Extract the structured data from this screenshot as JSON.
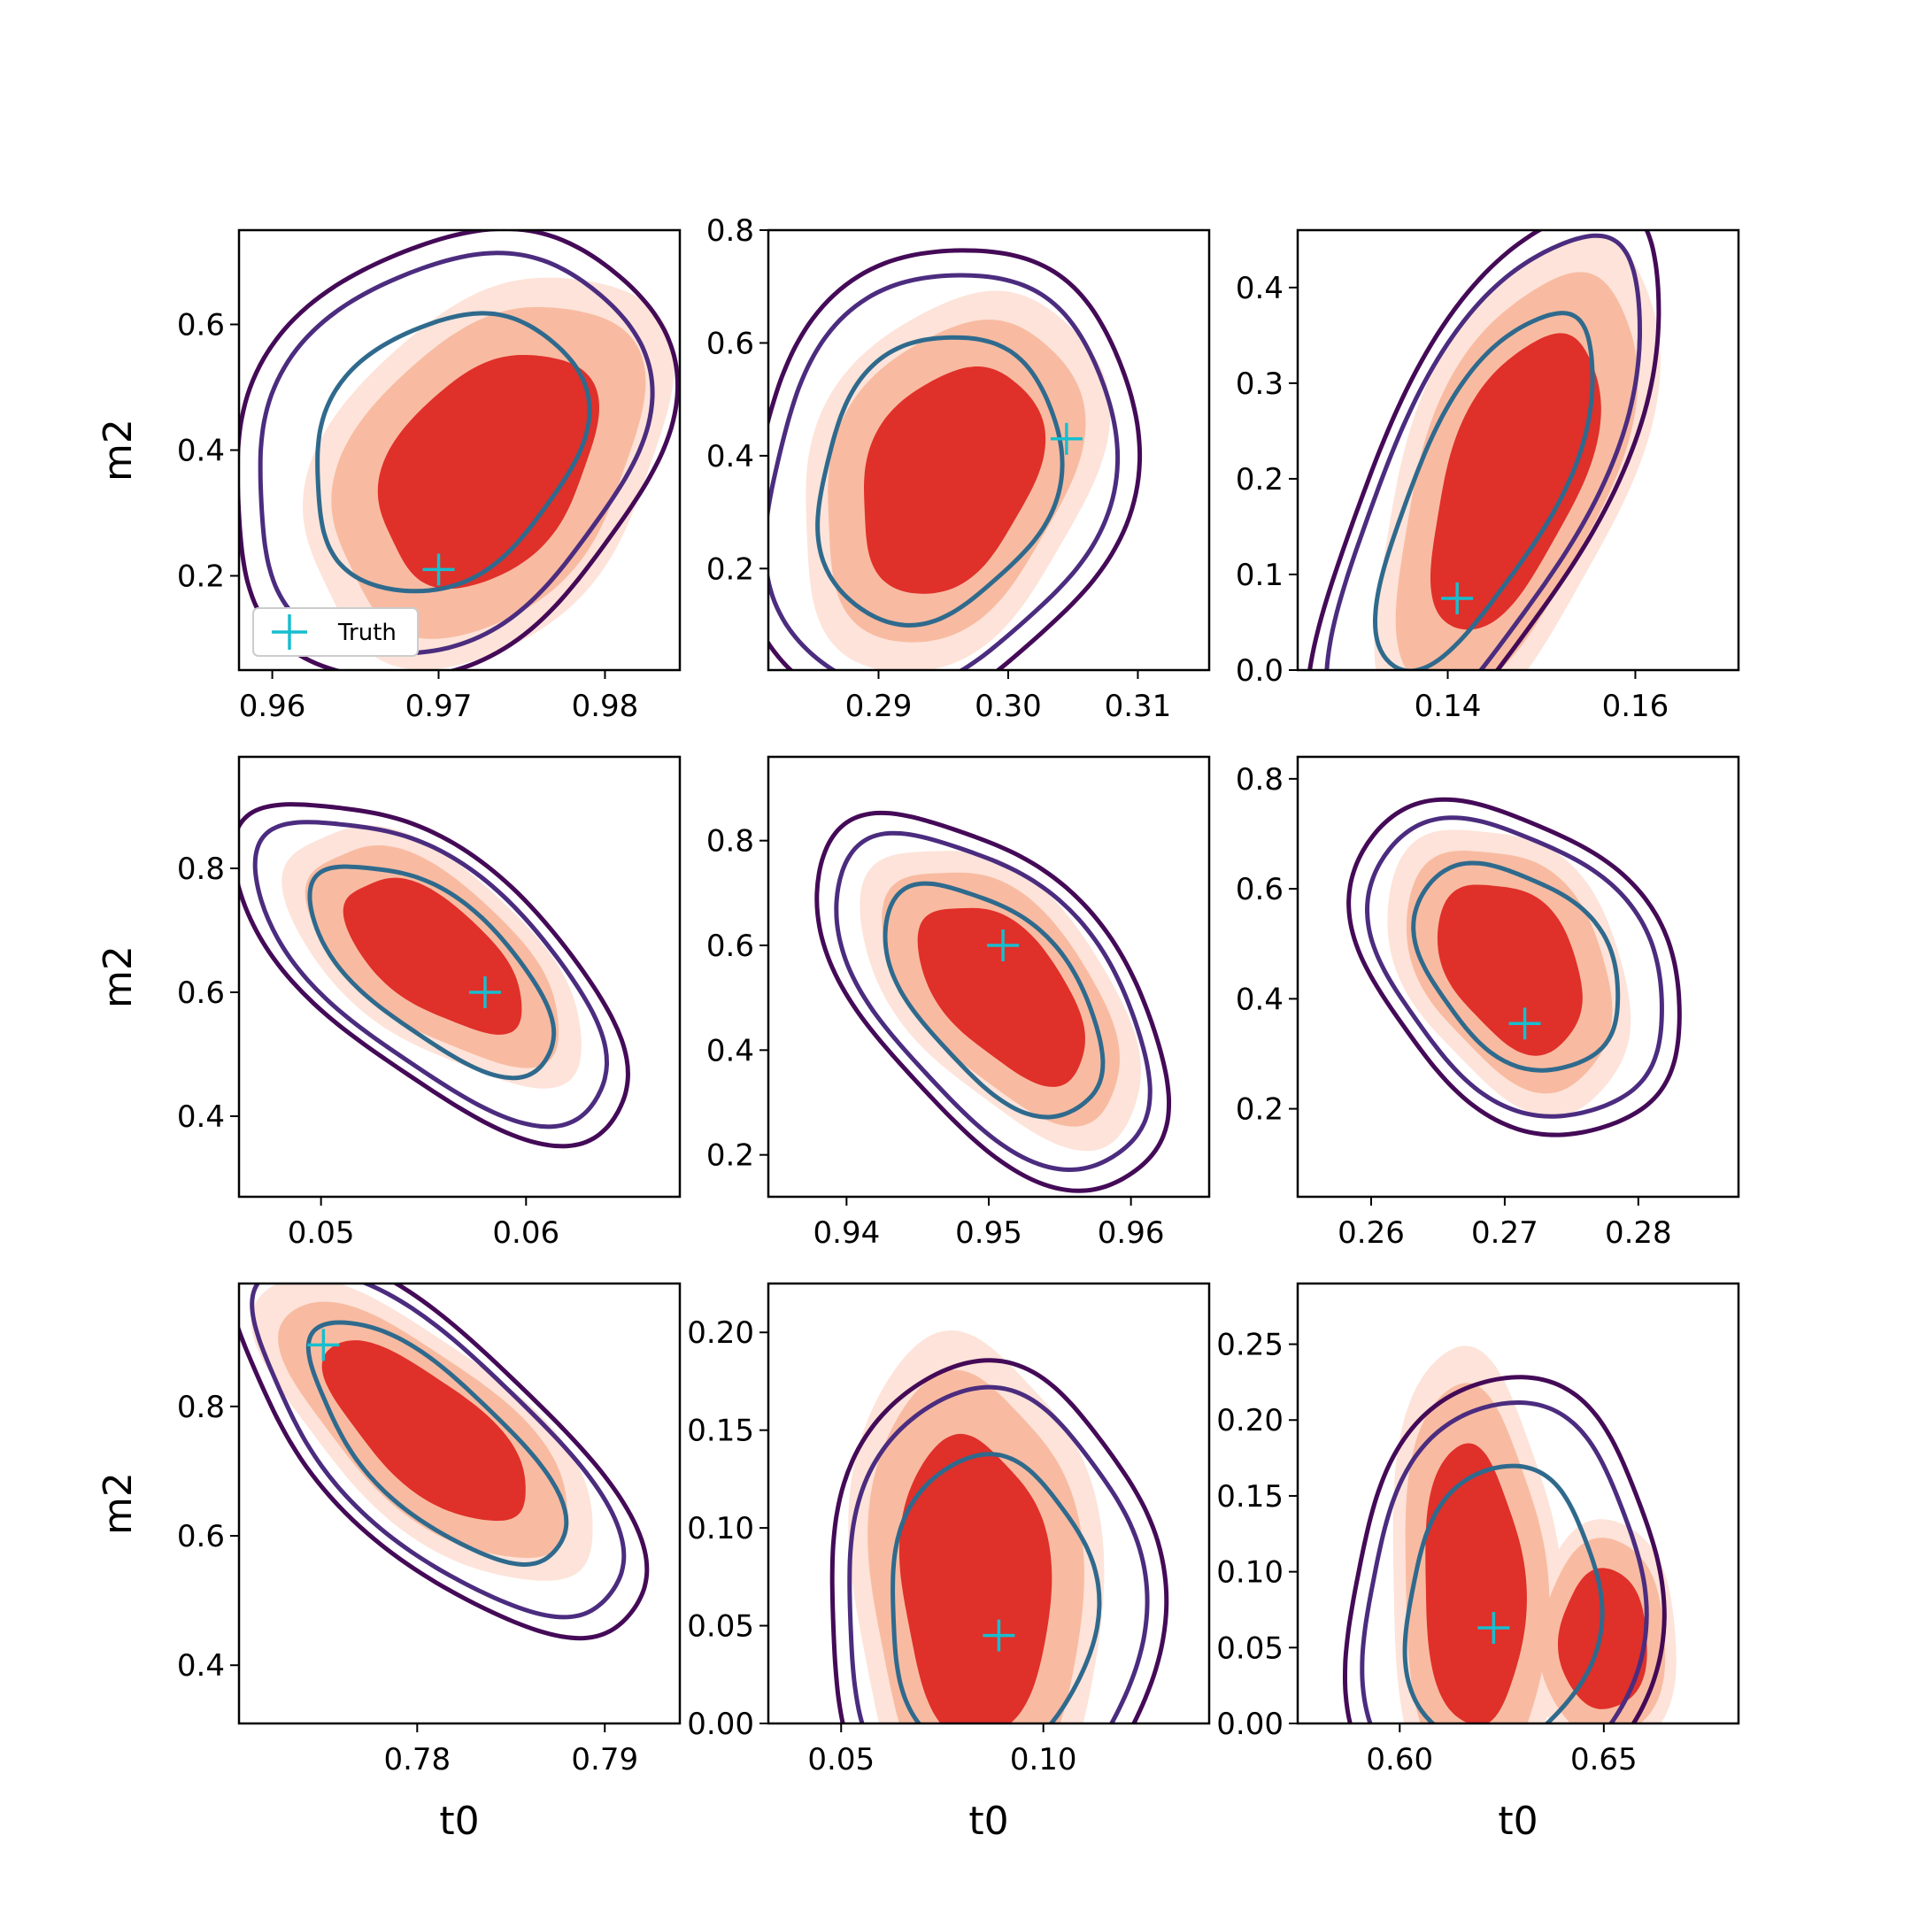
{
  "figure": {
    "xlabel": "t0",
    "ylabel": "m2",
    "legend_label": "Truth",
    "legend_location": "lower left",
    "colors": {
      "filled_outer": "#fde3d9",
      "filled_mid": "#f8bba1",
      "filled_inner": "#e0302a",
      "contour_outer": "#440a57",
      "contour_mid": "#4b2c7f",
      "contour_inner": "#2f6a8d",
      "truth_marker": "#17becf"
    }
  },
  "chart_data": [
    {
      "type": "scatter",
      "title": "",
      "xlim": [
        0.958,
        0.9845
      ],
      "ylim": [
        0.05,
        0.75
      ],
      "xticks": [
        "0.96",
        "0.97",
        "0.98"
      ],
      "xtick_values": [
        0.96,
        0.97,
        0.98
      ],
      "yticks": [
        "0.2",
        "0.4",
        "0.6"
      ],
      "ytick_values": [
        0.2,
        0.4,
        0.6
      ],
      "filled_center": [
        0.973,
        0.37
      ],
      "filled_spread": [
        0.0042,
        0.12
      ],
      "filled_corr": 0.35,
      "contour_center": [
        0.9705,
        0.4
      ],
      "contour_spread": [
        0.0048,
        0.13
      ],
      "contour_corr": 0.25,
      "truth": [
        0.97,
        0.21
      ],
      "show_xlabel": false,
      "show_ylabel": true,
      "show_legend": true
    },
    {
      "type": "scatter",
      "title": "",
      "xlim": [
        0.2815,
        0.3155
      ],
      "ylim": [
        0.02,
        0.8
      ],
      "xticks": [
        "0.29",
        "0.30",
        "0.31"
      ],
      "xtick_values": [
        0.29,
        0.3,
        0.31
      ],
      "yticks": [
        "0.2",
        "0.4",
        "0.6",
        "0.8"
      ],
      "ytick_values": [
        0.2,
        0.4,
        0.6,
        0.8
      ],
      "filled_center": [
        0.2955,
        0.36
      ],
      "filled_spread": [
        0.0045,
        0.13
      ],
      "filled_corr": 0.3,
      "contour_center": [
        0.2945,
        0.36
      ],
      "contour_spread": [
        0.0055,
        0.15
      ],
      "contour_corr": 0.2,
      "truth": [
        0.3045,
        0.43
      ],
      "show_xlabel": false,
      "show_ylabel": false,
      "show_legend": false
    },
    {
      "type": "scatter",
      "title": "",
      "xlim": [
        0.124,
        0.171
      ],
      "ylim": [
        0.0,
        0.46
      ],
      "xticks": [
        "0.14",
        "0.16"
      ],
      "xtick_values": [
        0.14,
        0.16
      ],
      "yticks": [
        "0.0",
        "0.1",
        "0.2",
        "0.3",
        "0.4"
      ],
      "ytick_values": [
        0.0,
        0.1,
        0.2,
        0.3,
        0.4
      ],
      "filled_center": [
        0.147,
        0.2
      ],
      "filled_spread": [
        0.0058,
        0.1
      ],
      "filled_corr": 0.55,
      "contour_center": [
        0.144,
        0.19
      ],
      "contour_spread": [
        0.0068,
        0.11
      ],
      "contour_corr": 0.7,
      "truth": [
        0.141,
        0.075
      ],
      "show_xlabel": false,
      "show_ylabel": false,
      "show_legend": false
    },
    {
      "type": "scatter",
      "title": "",
      "xlim": [
        0.046,
        0.0675
      ],
      "ylim": [
        0.27,
        0.98
      ],
      "xticks": [
        "0.05",
        "0.06"
      ],
      "xtick_values": [
        0.05,
        0.06
      ],
      "yticks": [
        "0.4",
        "0.6",
        "0.8"
      ],
      "ytick_values": [
        0.4,
        0.6,
        0.8
      ],
      "filled_center": [
        0.0555,
        0.66
      ],
      "filled_spread": [
        0.0028,
        0.08
      ],
      "filled_corr": -0.6,
      "contour_center": [
        0.0555,
        0.64
      ],
      "contour_spread": [
        0.0035,
        0.1
      ],
      "contour_corr": -0.65,
      "truth": [
        0.058,
        0.6
      ],
      "show_xlabel": false,
      "show_ylabel": true,
      "show_legend": false
    },
    {
      "type": "scatter",
      "title": "",
      "xlim": [
        0.9345,
        0.9655
      ],
      "ylim": [
        0.12,
        0.96
      ],
      "xticks": [
        "0.94",
        "0.95",
        "0.96"
      ],
      "xtick_values": [
        0.94,
        0.95,
        0.96
      ],
      "yticks": [
        "0.2",
        "0.4",
        "0.6",
        "0.8"
      ],
      "ytick_values": [
        0.2,
        0.4,
        0.6,
        0.8
      ],
      "filled_center": [
        0.951,
        0.51
      ],
      "filled_spread": [
        0.0038,
        0.11
      ],
      "filled_corr": -0.55,
      "contour_center": [
        0.9505,
        0.5
      ],
      "contour_spread": [
        0.0045,
        0.13
      ],
      "contour_corr": -0.55,
      "truth": [
        0.951,
        0.6
      ],
      "show_xlabel": false,
      "show_ylabel": false,
      "show_legend": false
    },
    {
      "type": "scatter",
      "title": "",
      "xlim": [
        0.2545,
        0.2875
      ],
      "ylim": [
        0.04,
        0.84
      ],
      "xticks": [
        "0.26",
        "0.27",
        "0.28"
      ],
      "xtick_values": [
        0.26,
        0.27,
        0.28
      ],
      "yticks": [
        "0.2",
        "0.4",
        "0.6",
        "0.8"
      ],
      "ytick_values": [
        0.2,
        0.4,
        0.6,
        0.8
      ],
      "filled_center": [
        0.2705,
        0.46
      ],
      "filled_spread": [
        0.0035,
        0.1
      ],
      "filled_corr": -0.35,
      "contour_center": [
        0.271,
        0.46
      ],
      "contour_spread": [
        0.0045,
        0.11
      ],
      "contour_corr": -0.35,
      "truth": [
        0.2715,
        0.355
      ],
      "show_xlabel": false,
      "show_ylabel": false,
      "show_legend": false
    },
    {
      "type": "scatter",
      "title": "",
      "xlim": [
        0.7705,
        0.794
      ],
      "ylim": [
        0.31,
        0.99
      ],
      "xticks": [
        "0.78",
        "0.79"
      ],
      "xtick_values": [
        0.78,
        0.79
      ],
      "yticks": [
        "0.4",
        "0.6",
        "0.8"
      ],
      "ytick_values": [
        0.4,
        0.6,
        0.8
      ],
      "filled_center": [
        0.7805,
        0.76
      ],
      "filled_spread": [
        0.0035,
        0.09
      ],
      "filled_corr": -0.7,
      "contour_center": [
        0.781,
        0.74
      ],
      "contour_spread": [
        0.004,
        0.11
      ],
      "contour_corr": -0.72,
      "truth": [
        0.775,
        0.895
      ],
      "show_xlabel": true,
      "show_ylabel": true,
      "show_legend": false
    },
    {
      "type": "scatter",
      "title": "",
      "xlim": [
        0.032,
        0.141
      ],
      "ylim": [
        0.0,
        0.225
      ],
      "xticks": [
        "0.05",
        "0.10"
      ],
      "xtick_values": [
        0.05,
        0.1
      ],
      "yticks": [
        "0.00",
        "0.05",
        "0.10",
        "0.15",
        "0.20"
      ],
      "ytick_values": [
        0.0,
        0.05,
        0.1,
        0.15,
        0.2
      ],
      "filled_center": [
        0.083,
        0.07
      ],
      "filled_spread": [
        0.012,
        0.05
      ],
      "filled_corr": -0.1,
      "contour_center": [
        0.087,
        0.06
      ],
      "contour_spread": [
        0.015,
        0.045
      ],
      "contour_corr": 0.0,
      "truth": [
        0.089,
        0.045
      ],
      "show_xlabel": true,
      "show_ylabel": false,
      "show_legend": false
    },
    {
      "type": "scatter",
      "title": "",
      "xlim": [
        0.575,
        0.683
      ],
      "ylim": [
        0.0,
        0.29
      ],
      "xticks": [
        "0.60",
        "0.65"
      ],
      "xtick_values": [
        0.6,
        0.65
      ],
      "yticks": [
        "0.00",
        "0.05",
        "0.10",
        "0.15",
        "0.20",
        "0.25"
      ],
      "ytick_values": [
        0.0,
        0.05,
        0.1,
        0.15,
        0.2,
        0.25
      ],
      "filled_center": [
        0.618,
        0.09
      ],
      "filled_spread": [
        0.008,
        0.06
      ],
      "filled_corr": -0.1,
      "filled_second_center": [
        0.65,
        0.055
      ],
      "filled_second_spread": [
        0.007,
        0.03
      ],
      "contour_center": [
        0.625,
        0.075
      ],
      "contour_spread": [
        0.014,
        0.055
      ],
      "contour_corr": 0.1,
      "truth": [
        0.623,
        0.063
      ],
      "show_xlabel": true,
      "show_ylabel": false,
      "show_legend": false
    }
  ]
}
